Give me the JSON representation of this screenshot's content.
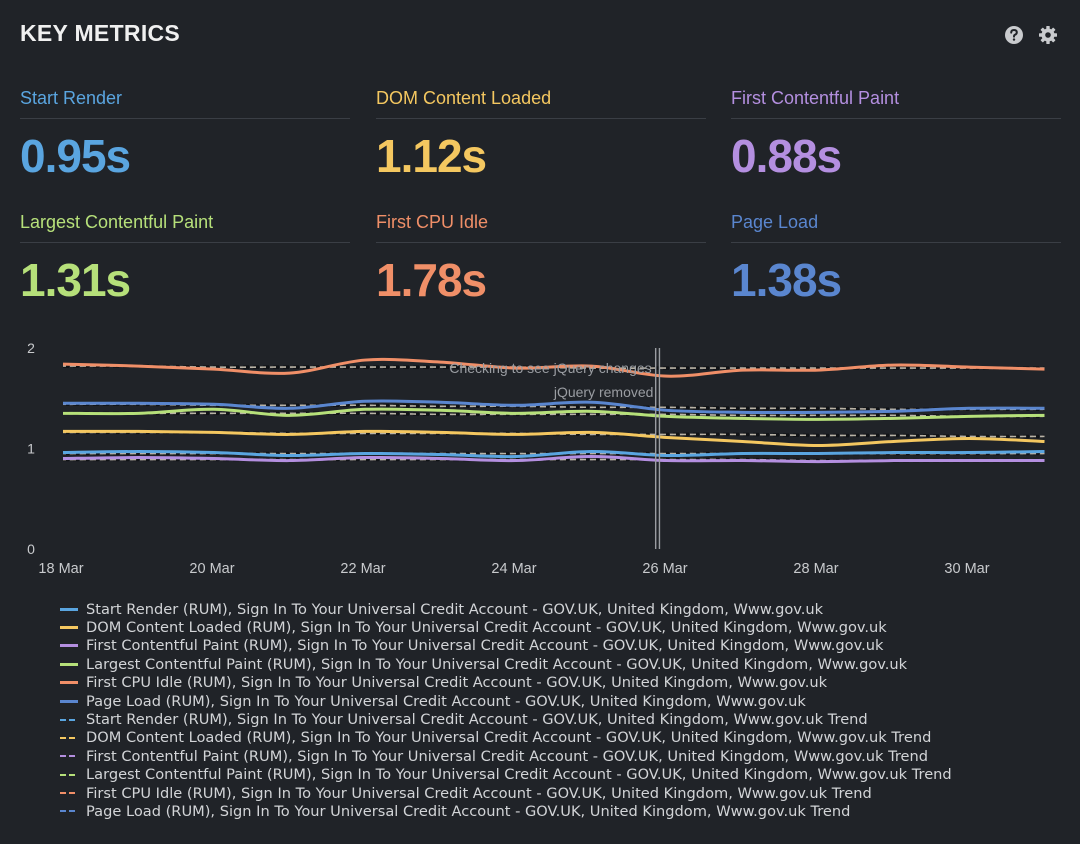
{
  "header": {
    "title": "KEY METRICS",
    "icons": [
      "help-icon",
      "gear-icon"
    ]
  },
  "metrics": [
    {
      "label": "Start Render",
      "value": "0.95s",
      "color": "#5aa5e0"
    },
    {
      "label": "DOM Content Loaded",
      "value": "1.12s",
      "color": "#f4c760"
    },
    {
      "label": "First Contentful Paint",
      "value": "0.88s",
      "color": "#b48fe0"
    },
    {
      "label": "Largest Contentful Paint",
      "value": "1.31s",
      "color": "#b6e07a"
    },
    {
      "label": "First CPU Idle",
      "value": "1.78s",
      "color": "#f08f68"
    },
    {
      "label": "Page Load",
      "value": "1.38s",
      "color": "#5a86cf"
    }
  ],
  "chart_data": {
    "type": "line",
    "title": "",
    "xlabel": "",
    "ylabel": "",
    "ylim": [
      0,
      2
    ],
    "yticks": [
      "0",
      "1",
      "2"
    ],
    "x": [
      "18 Mar",
      "19 Mar",
      "20 Mar",
      "21 Mar",
      "22 Mar",
      "23 Mar",
      "24 Mar",
      "25 Mar",
      "26 Mar",
      "27 Mar",
      "28 Mar",
      "29 Mar",
      "30 Mar",
      "31 Mar"
    ],
    "xticks": [
      "18 Mar",
      "20 Mar",
      "22 Mar",
      "24 Mar",
      "26 Mar",
      "28 Mar",
      "30 Mar"
    ],
    "grid": false,
    "legend_position": "bottom",
    "series": [
      {
        "name": "Start Render (RUM), Sign In To Your Universal Credit Account - GOV.UK, United Kingdom, Www.gov.uk",
        "color": "#5aa5e0",
        "style": "solid",
        "values": [
          0.96,
          0.97,
          0.96,
          0.93,
          0.95,
          0.94,
          0.92,
          0.97,
          0.93,
          0.95,
          0.95,
          0.96,
          0.96,
          0.97
        ]
      },
      {
        "name": "DOM Content Loaded (RUM), Sign In To Your Universal Credit Account - GOV.UK, United Kingdom, Www.gov.uk",
        "color": "#f4c760",
        "style": "solid",
        "values": [
          1.17,
          1.17,
          1.16,
          1.14,
          1.17,
          1.16,
          1.14,
          1.16,
          1.11,
          1.07,
          1.03,
          1.07,
          1.1,
          1.07
        ]
      },
      {
        "name": "First Contentful Paint (RUM), Sign In To Your Universal Credit Account - GOV.UK, United Kingdom, Www.gov.uk",
        "color": "#b48fe0",
        "style": "solid",
        "values": [
          0.9,
          0.91,
          0.9,
          0.88,
          0.91,
          0.9,
          0.88,
          0.92,
          0.88,
          0.88,
          0.87,
          0.88,
          0.88,
          0.88
        ]
      },
      {
        "name": "Largest Contentful Paint (RUM), Sign In To Your Universal Credit Account - GOV.UK, United Kingdom, Www.gov.uk",
        "color": "#b6e07a",
        "style": "solid",
        "values": [
          1.35,
          1.35,
          1.39,
          1.33,
          1.39,
          1.38,
          1.35,
          1.37,
          1.32,
          1.3,
          1.29,
          1.3,
          1.32,
          1.33
        ]
      },
      {
        "name": "First CPU Idle (RUM), Sign In To Your Universal Credit Account - GOV.UK, United Kingdom, Www.gov.uk",
        "color": "#f08f68",
        "style": "solid",
        "values": [
          1.84,
          1.82,
          1.79,
          1.75,
          1.88,
          1.86,
          1.8,
          1.82,
          1.72,
          1.78,
          1.78,
          1.83,
          1.81,
          1.79
        ]
      },
      {
        "name": "Page Load (RUM), Sign In To Your Universal Credit Account - GOV.UK, United Kingdom, Www.gov.uk",
        "color": "#5a86cf",
        "style": "solid",
        "values": [
          1.45,
          1.45,
          1.44,
          1.4,
          1.47,
          1.46,
          1.43,
          1.46,
          1.38,
          1.36,
          1.36,
          1.37,
          1.4,
          1.4
        ]
      },
      {
        "name": "Start Render (RUM), Sign In To Your Universal Credit Account - GOV.UK, United Kingdom, Www.gov.uk Trend",
        "color": "#5aa5e0",
        "style": "dashed",
        "values": [
          0.95,
          0.95,
          0.95,
          0.95,
          0.95,
          0.95,
          0.95,
          0.95,
          0.95,
          0.95,
          0.95,
          0.95,
          0.95,
          0.95
        ]
      },
      {
        "name": "DOM Content Loaded (RUM), Sign In To Your Universal Credit Account - GOV.UK, United Kingdom, Www.gov.uk Trend",
        "color": "#f4c760",
        "style": "dashed",
        "values": [
          1.16,
          1.16,
          1.16,
          1.15,
          1.15,
          1.15,
          1.15,
          1.14,
          1.14,
          1.14,
          1.13,
          1.13,
          1.12,
          1.12
        ]
      },
      {
        "name": "First Contentful Paint (RUM), Sign In To Your Universal Credit Account - GOV.UK, United Kingdom, Www.gov.uk Trend",
        "color": "#b48fe0",
        "style": "dashed",
        "values": [
          0.89,
          0.89,
          0.89,
          0.89,
          0.89,
          0.89,
          0.89,
          0.89,
          0.89,
          0.89,
          0.88,
          0.88,
          0.88,
          0.88
        ]
      },
      {
        "name": "Largest Contentful Paint (RUM), Sign In To Your Universal Credit Account - GOV.UK, United Kingdom, Www.gov.uk Trend",
        "color": "#b6e07a",
        "style": "dashed",
        "values": [
          1.35,
          1.35,
          1.35,
          1.35,
          1.35,
          1.34,
          1.34,
          1.34,
          1.34,
          1.33,
          1.33,
          1.33,
          1.32,
          1.32
        ]
      },
      {
        "name": "First CPU Idle (RUM), Sign In To Your Universal Credit Account - GOV.UK, United Kingdom, Www.gov.uk Trend",
        "color": "#f08f68",
        "style": "dashed",
        "values": [
          1.82,
          1.82,
          1.81,
          1.81,
          1.81,
          1.81,
          1.81,
          1.8,
          1.8,
          1.8,
          1.8,
          1.8,
          1.8,
          1.8
        ]
      },
      {
        "name": "Page Load (RUM), Sign In To Your Universal Credit Account - GOV.UK, United Kingdom, Www.gov.uk Trend",
        "color": "#5a86cf",
        "style": "dashed",
        "values": [
          1.44,
          1.44,
          1.43,
          1.43,
          1.43,
          1.42,
          1.42,
          1.41,
          1.41,
          1.4,
          1.4,
          1.39,
          1.39,
          1.39
        ]
      }
    ],
    "annotations": [
      {
        "label": "Checking to see jQuery changes",
        "x": "25 Mar",
        "x_offset_days": 0.85
      },
      {
        "label": "jQuery removed",
        "x": "25 Mar",
        "x_offset_days": 0.9
      }
    ]
  }
}
